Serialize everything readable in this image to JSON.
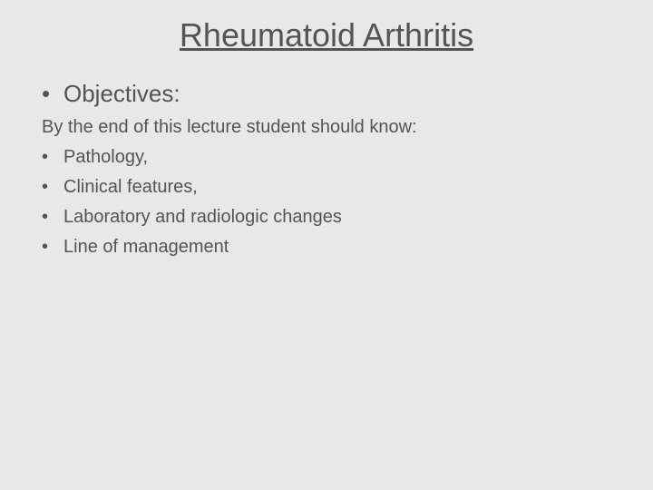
{
  "slide": {
    "title": "Rheumatoid Arthritis",
    "heading_bullet": "Objectives:",
    "intro_text": "By the end of this lecture student should know:",
    "bullets": [
      "Pathology,",
      "Clinical features,",
      "Laboratory and radiologic changes",
      "Line of management"
    ],
    "colors": {
      "background": "#e8e8e8",
      "text": "#545454"
    },
    "typography": {
      "title_fontsize": 36,
      "heading_fontsize": 26,
      "body_fontsize": 20,
      "font_family": "Arial"
    }
  }
}
